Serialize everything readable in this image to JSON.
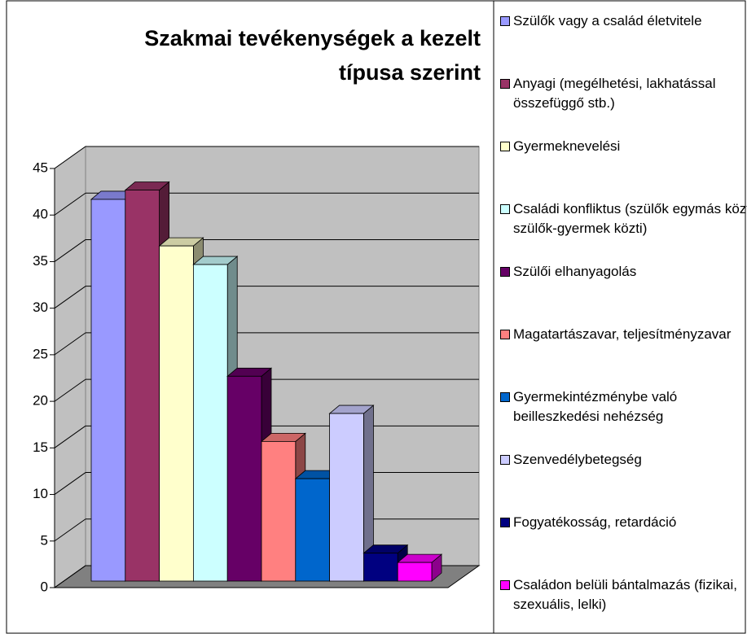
{
  "chart_data": {
    "type": "bar3d",
    "title": "Szakmai tevékenységek a kezelt típusa szerint",
    "categories": [
      null
    ],
    "series": [
      {
        "name": "Szülők vagy a család életvitele",
        "color": "#9999ff",
        "values": [
          41
        ]
      },
      {
        "name": "Anyagi (megélhetési, lakhatással összefüggő stb.)",
        "color": "#993366",
        "values": [
          42
        ]
      },
      {
        "name": "Gyermeknevelési",
        "color": "#ffffcc",
        "values": [
          36
        ]
      },
      {
        "name": "Családi konfliktus (szülők egymás közti, szülők-gyermek közti)",
        "color": "#ccffff",
        "values": [
          34
        ]
      },
      {
        "name": "Szülői elhanyagolás",
        "color": "#660066",
        "values": [
          22
        ]
      },
      {
        "name": "Magatartászavar, teljesítményzavar",
        "color": "#ff8080",
        "values": [
          15
        ]
      },
      {
        "name": "Gyermekintézménybe való beilleszkedési nehézség",
        "color": "#0066cc",
        "values": [
          11
        ]
      },
      {
        "name": "Szenvedélybetegség",
        "color": "#ccccff",
        "values": [
          18
        ]
      },
      {
        "name": "Fogyatékosság, retardáció",
        "color": "#000080",
        "values": [
          3
        ]
      },
      {
        "name": "Családon belüli bántalmazás (fizikai, szexuális, lelki)",
        "color": "#ff00ff",
        "values": [
          2
        ]
      }
    ],
    "ylim": [
      0,
      45
    ],
    "yticks": [
      0,
      5,
      10,
      15,
      20,
      25,
      30,
      35,
      40,
      45
    ],
    "grid": true,
    "legend": "right"
  }
}
